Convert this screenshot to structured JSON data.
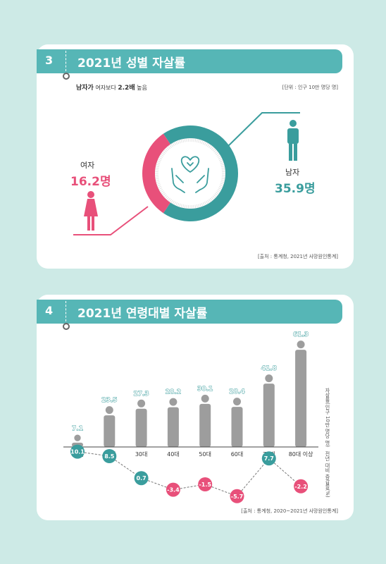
{
  "section3": {
    "number": "3",
    "title": "2021년 성별 자살률",
    "lead_bold1": "남자가",
    "lead_normal1": " 여자보다 ",
    "lead_bold2": "2.2배",
    "lead_normal2": " 높음",
    "unit": "[단위 : 인구 10만 명당 명]",
    "female_label": "여자",
    "female_value": "16.2명",
    "male_label": "남자",
    "male_value": "35.9명",
    "source": "[출처 : 통계청, 2021년 사망원인통계]"
  },
  "section4": {
    "number": "4",
    "title": "2021년 연령대별 자살률",
    "y_label_rate": "자살률(인구 10만 명당 명)",
    "y_label_change": "전년 대비 증감률(%)",
    "source": "[출처 : 통계청, 2020~2021년 사망원인통계]"
  },
  "colors": {
    "teal": "#3a9d9d",
    "pink": "#e8507a",
    "gray": "#9d9d9d",
    "header": "#56b6b6",
    "background": "#cdeae6"
  },
  "chart_data": [
    {
      "type": "pie",
      "categories": [
        "여자",
        "남자"
      ],
      "values": [
        16.2,
        35.9
      ]
    },
    {
      "type": "bar",
      "categories": [
        "10대",
        "20대",
        "30대",
        "40대",
        "50대",
        "60대",
        "70대",
        "80대 이상"
      ],
      "values": [
        7.1,
        23.5,
        27.3,
        28.2,
        30.1,
        28.4,
        41.8,
        61.3
      ],
      "ylabel": "자살률(인구 10만 명당 명)"
    },
    {
      "type": "line",
      "categories": [
        "10대",
        "20대",
        "30대",
        "40대",
        "50대",
        "60대",
        "70대",
        "80대 이상"
      ],
      "values": [
        10.1,
        8.5,
        0.7,
        -3.4,
        -1.5,
        -5.7,
        7.7,
        -2.2
      ],
      "ylabel": "전년 대비 증감률(%)"
    }
  ]
}
